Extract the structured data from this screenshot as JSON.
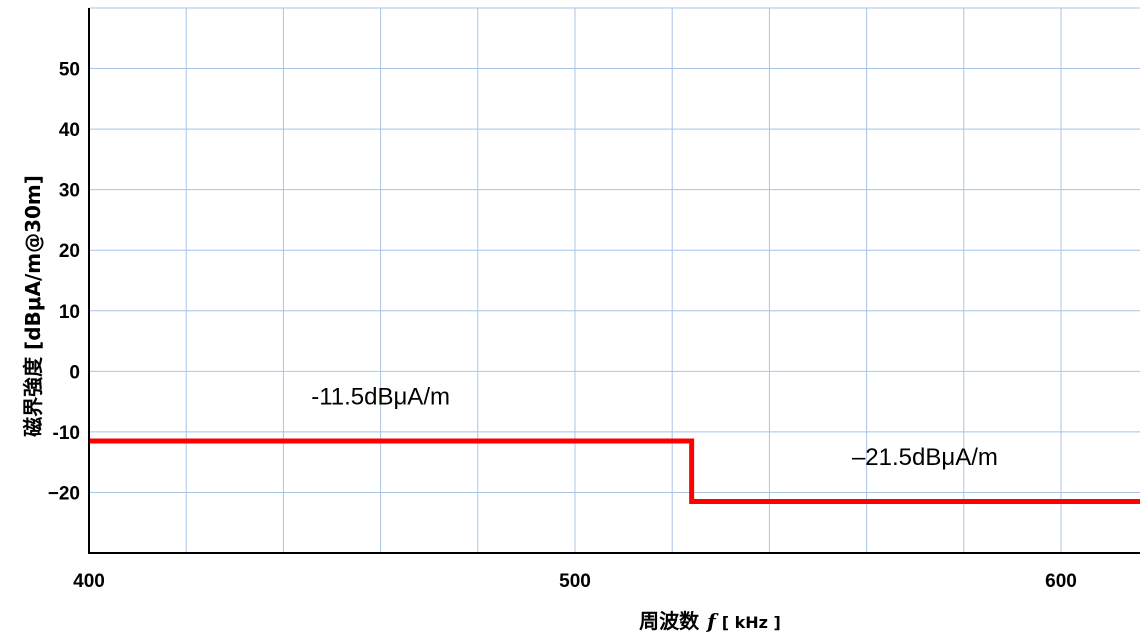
{
  "chart_data": {
    "type": "line",
    "xlabel": "周波数",
    "xlabel_symbol": "f",
    "xlabel_unit": "[ kHz ]",
    "ylabel": "磁界強度 [dBμA/m@30m]",
    "xlim": [
      400,
      620
    ],
    "ylim": [
      -30,
      60
    ],
    "x_ticks": [
      400,
      500,
      600
    ],
    "y_ticks": [
      -20,
      -10,
      0,
      10,
      20,
      30,
      40,
      50
    ],
    "x_tick_labels": [
      "400",
      "500",
      "600"
    ],
    "y_tick_labels": [
      "−20",
      "-10",
      "0",
      "10",
      "20",
      "30",
      "40",
      "50"
    ],
    "grid": true,
    "grid_x_step": 20,
    "series": [
      {
        "x": [
          400,
          524,
          524,
          620
        ],
        "y": [
          -11.5,
          -11.5,
          -21.5,
          -21.5
        ],
        "color": "#ff0000"
      }
    ],
    "annotations": [
      {
        "text": "-11.5dBμA/m",
        "x": 460,
        "y": -5.5
      },
      {
        "text": "–21.5dBμA/m",
        "x": 572,
        "y": -15.5
      }
    ]
  },
  "colors": {
    "grid": "#a9c4e8",
    "axis": "#000000",
    "line": "#ff0000"
  }
}
